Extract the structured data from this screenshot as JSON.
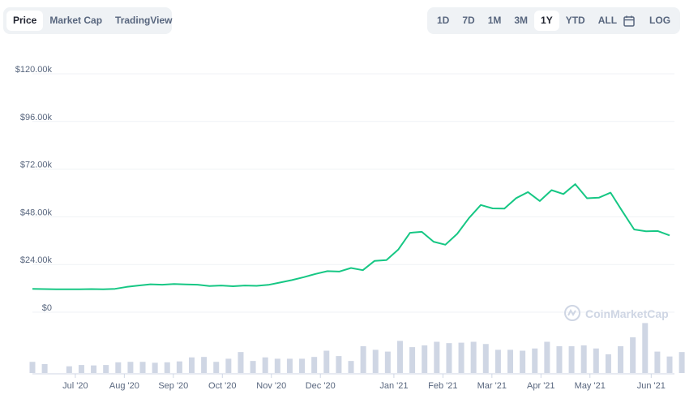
{
  "tabs_left": [
    {
      "label": "Price",
      "active": true
    },
    {
      "label": "Market Cap",
      "active": false
    },
    {
      "label": "TradingView",
      "active": false
    }
  ],
  "tabs_right": [
    {
      "label": "1D",
      "active": false
    },
    {
      "label": "7D",
      "active": false
    },
    {
      "label": "1M",
      "active": false
    },
    {
      "label": "3M",
      "active": false
    },
    {
      "label": "1Y",
      "active": true
    },
    {
      "label": "YTD",
      "active": false
    },
    {
      "label": "ALL",
      "active": false
    }
  ],
  "log_label": "LOG",
  "calendar_icon": "calendar-icon",
  "watermark": "CoinMarketCap",
  "colors": {
    "line": "#16c784",
    "volume": "#cfd6e4",
    "grid": "#eff2f5",
    "text": "#58667e"
  },
  "chart_data": {
    "type": "line",
    "y_ticks": [
      "$120.00k",
      "$96.00k",
      "$72.00k",
      "$48.00k",
      "$24.00k",
      "$0"
    ],
    "y_tick_values": [
      120000,
      96000,
      72000,
      48000,
      24000,
      0
    ],
    "ylim": [
      0,
      120000
    ],
    "x_ticks": [
      "Jul '20",
      "Aug '20",
      "Sep '20",
      "Oct '20",
      "Nov '20",
      "Dec '20",
      "Jan '21",
      "Feb '21",
      "Mar '21",
      "Apr '21",
      "May '21",
      "Jun '21"
    ],
    "x_tick_positions": [
      3.5,
      7.5,
      11.5,
      15.5,
      19.5,
      23.5,
      29.5,
      33.5,
      37.5,
      41.5,
      45.5,
      50.5
    ],
    "x_range": [
      0,
      52
    ],
    "series": [
      {
        "values": [
          9300,
          9200,
          9100,
          9100,
          9100,
          9200,
          9100,
          9300,
          10300,
          11000,
          11600,
          11400,
          11700,
          11500,
          11400,
          10700,
          11000,
          10600,
          11000,
          10800,
          11300,
          12500,
          13700,
          15200,
          16800,
          18200,
          18000,
          19800,
          18700,
          23400,
          23800,
          29000,
          37500,
          38000,
          33000,
          31500,
          37000,
          45000,
          51500,
          49800,
          49700,
          55000,
          58000,
          53500,
          59000,
          57000,
          62000,
          54900,
          55200,
          57700,
          48300,
          39200,
          38300,
          38400,
          36200
        ],
        "x_start": 0
      }
    ],
    "volume": {
      "x_start": 0,
      "values": [
        25,
        20,
        0,
        15,
        18,
        17,
        18,
        24,
        25,
        25,
        23,
        24,
        26,
        35,
        36,
        25,
        32,
        47,
        27,
        35,
        32,
        32,
        32,
        36,
        50,
        38,
        27,
        60,
        52,
        48,
        72,
        58,
        62,
        70,
        67,
        68,
        70,
        65,
        52,
        52,
        50,
        55,
        70,
        60,
        60,
        62,
        55,
        42,
        60,
        80,
        112,
        48,
        37,
        47
      ]
    }
  }
}
